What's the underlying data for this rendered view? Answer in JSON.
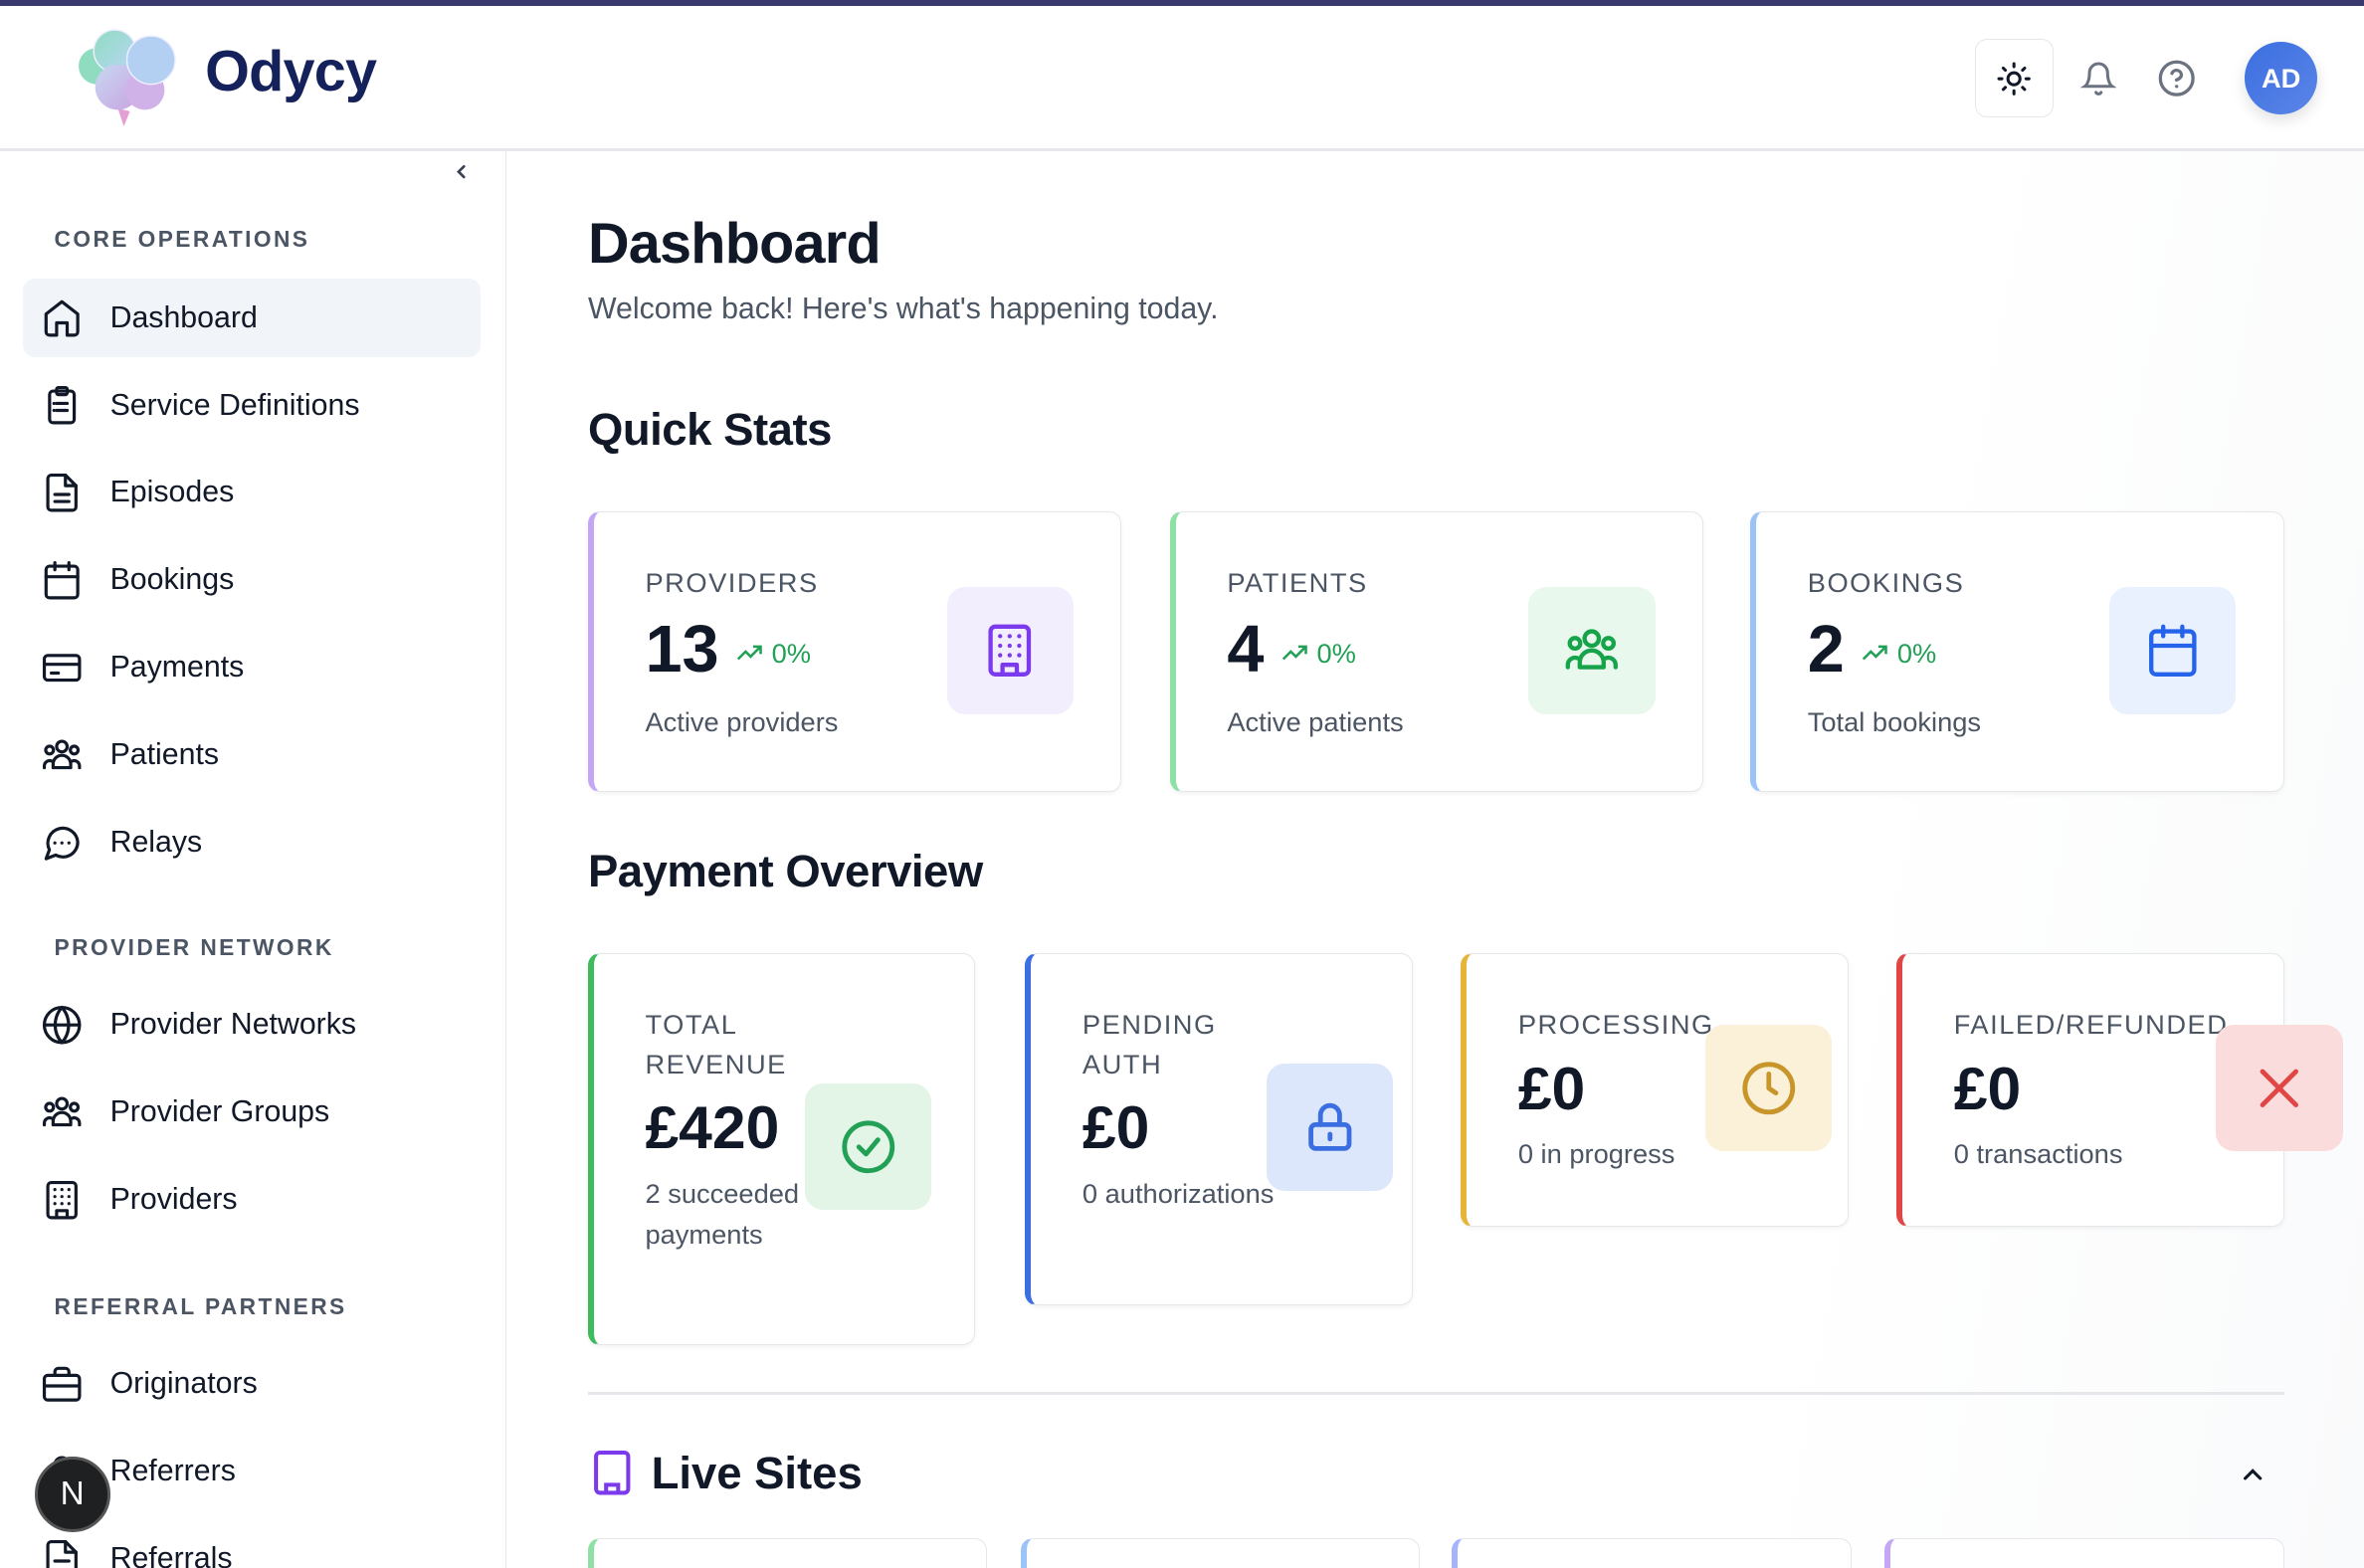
{
  "brand": {
    "name": "Odycy"
  },
  "header": {
    "avatar_initials": "AD"
  },
  "sidebar": {
    "sections": [
      {
        "label": "CORE OPERATIONS"
      },
      {
        "label": "PROVIDER NETWORK"
      },
      {
        "label": "REFERRAL PARTNERS"
      }
    ],
    "items": [
      {
        "label": "Dashboard",
        "icon": "home-icon",
        "active": true
      },
      {
        "label": "Service Definitions",
        "icon": "clipboard-list-icon"
      },
      {
        "label": "Episodes",
        "icon": "file-text-icon"
      },
      {
        "label": "Bookings",
        "icon": "calendar-icon"
      },
      {
        "label": "Payments",
        "icon": "credit-card-icon"
      },
      {
        "label": "Patients",
        "icon": "users-icon"
      },
      {
        "label": "Relays",
        "icon": "message-circle-icon"
      },
      {
        "label": "Provider Networks",
        "icon": "globe-icon"
      },
      {
        "label": "Provider Groups",
        "icon": "users-icon"
      },
      {
        "label": "Providers",
        "icon": "building-icon"
      },
      {
        "label": "Originators",
        "icon": "briefcase-icon"
      },
      {
        "label": "Referrers",
        "icon": "user-icon"
      },
      {
        "label": "Referrals",
        "icon": "file-icon"
      }
    ],
    "floating_badge": "N"
  },
  "main": {
    "title": "Dashboard",
    "subtitle": "Welcome back! Here's what's happening today.",
    "quick_stats": {
      "heading": "Quick Stats",
      "cards": [
        {
          "label": "PROVIDERS",
          "value": "13",
          "trend": "0%",
          "desc": "Active providers",
          "accent": "#c4a6f5",
          "icon": "building-icon",
          "icon_color": "#7c3aed",
          "icon_bg": "#f3eefe"
        },
        {
          "label": "PATIENTS",
          "value": "4",
          "trend": "0%",
          "desc": "Active patients",
          "accent": "#8ee0a4",
          "icon": "users-icon",
          "icon_color": "#16a34a",
          "icon_bg": "#e8f8ec"
        },
        {
          "label": "BOOKINGS",
          "value": "2",
          "trend": "0%",
          "desc": "Total bookings",
          "accent": "#9cc3f7",
          "icon": "calendar-icon",
          "icon_color": "#2563eb",
          "icon_bg": "#eaf1fe"
        }
      ]
    },
    "payment_overview": {
      "heading": "Payment Overview",
      "cards": [
        {
          "label": "TOTAL REVENUE",
          "value": "£420",
          "desc": "2 succeeded payments",
          "accent": "#3dbb5d",
          "icon": "check-circle-icon"
        },
        {
          "label": "PENDING AUTH",
          "value": "£0",
          "desc": "0 authorizations",
          "accent": "#3b6ee0",
          "icon": "lock-icon"
        },
        {
          "label": "PROCESSING",
          "value": "£0",
          "desc": "0 in progress",
          "accent": "#e5b53a",
          "icon": "clock-icon"
        },
        {
          "label": "FAILED/REFUNDED",
          "value": "£0",
          "desc": "0 transactions",
          "accent": "#e04646",
          "icon": "x-icon"
        }
      ]
    },
    "live_sites": {
      "heading": "Live Sites"
    }
  }
}
